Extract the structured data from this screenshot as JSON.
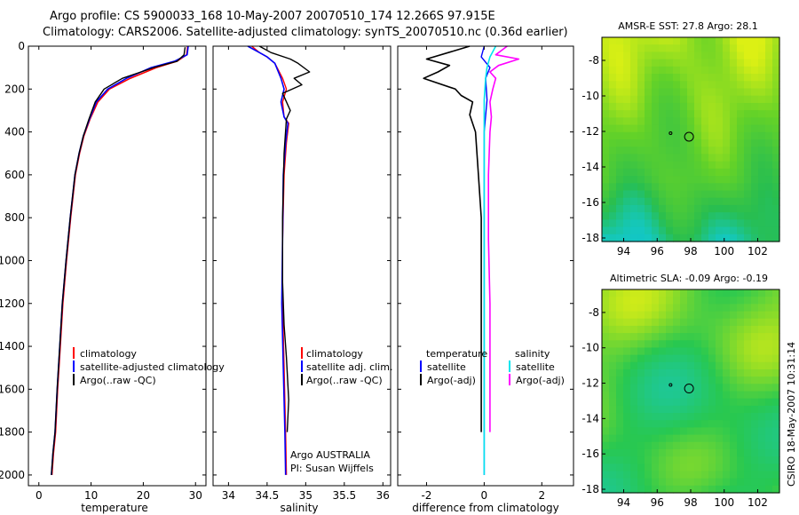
{
  "figure": {
    "title_line1": "Argo profile: CS 5900033_168 10-May-2007 20070510_174 12.266S 97.915E",
    "title_line2": "Climatology: CARS2006. Satellite-adjusted climatology: synTS_20070510.nc (0.36d earlier)",
    "side_stamp": "CSIRO 18-May-2007 10:31:14",
    "colors": {
      "climatology": "#ff0000",
      "satellite": "#0000ff",
      "argo": "#000000",
      "salinity_satellite": "#00e5ee",
      "salinity_argo": "#ff00ff"
    }
  },
  "chart_data": [
    {
      "id": "temperature",
      "type": "line",
      "xlabel": "temperature",
      "ylabel": "",
      "xlim": [
        -2,
        32
      ],
      "ylim": [
        2050,
        0
      ],
      "xticks": [
        0,
        10,
        20,
        30
      ],
      "yticks": [
        0,
        200,
        400,
        600,
        800,
        1000,
        1200,
        1400,
        1600,
        1800,
        2000
      ],
      "legend": [
        "climatology",
        "satellite-adjusted climatology",
        "Argo(..raw -QC)"
      ],
      "series": [
        {
          "name": "climatology",
          "color": "#ff0000",
          "width": 1.6,
          "x": [
            28.5,
            28.3,
            26.5,
            22.5,
            17.5,
            13.5,
            11.3,
            9.8,
            8.6,
            7.8,
            7.0,
            6.1,
            5.3,
            4.6,
            4.1,
            3.6,
            3.2,
            2.8,
            2.5
          ],
          "y": [
            0,
            40,
            70,
            100,
            150,
            200,
            260,
            340,
            420,
            500,
            600,
            800,
            1000,
            1200,
            1400,
            1600,
            1800,
            1900,
            2000
          ]
        },
        {
          "name": "satellite-adjusted climatology",
          "color": "#0000ff",
          "width": 1.6,
          "x": [
            28.6,
            28.4,
            26.0,
            21.5,
            16.8,
            13.2,
            11.0,
            9.7,
            8.5,
            7.7,
            6.9,
            6.0,
            5.2,
            4.5,
            4.0,
            3.5,
            3.1,
            2.7,
            2.4
          ],
          "y": [
            0,
            40,
            70,
            100,
            150,
            200,
            260,
            340,
            420,
            500,
            600,
            800,
            1000,
            1200,
            1400,
            1600,
            1800,
            1900,
            2000
          ]
        },
        {
          "name": "Argo(..raw -QC)",
          "color": "#000000",
          "width": 1.4,
          "x": [
            28.0,
            27.8,
            26.5,
            22.0,
            16.0,
            12.5,
            10.8,
            9.6,
            8.5,
            7.7,
            6.9,
            6.0,
            5.2,
            4.5,
            4.0,
            3.5,
            3.1,
            2.7,
            2.4
          ],
          "y": [
            5,
            40,
            70,
            100,
            150,
            200,
            260,
            340,
            420,
            500,
            600,
            800,
            1000,
            1200,
            1400,
            1600,
            1800,
            1900,
            2000
          ]
        }
      ]
    },
    {
      "id": "salinity",
      "type": "line",
      "xlabel": "salinity",
      "ylabel": "",
      "xlim": [
        33.8,
        36.1
      ],
      "ylim": [
        2050,
        0
      ],
      "xticks": [
        34,
        34.5,
        35,
        35.5,
        36
      ],
      "xticklabels": [
        "34",
        "34.5",
        "35",
        "35.5",
        "36"
      ],
      "legend": [
        "climatology",
        "satellite adj. clim.",
        "Argo(..raw -QC)"
      ],
      "annotations": [
        "Argo AUSTRALIA",
        "PI: Susan Wijffels"
      ],
      "series": [
        {
          "name": "climatology",
          "color": "#ff0000",
          "width": 1.4,
          "x": [
            34.3,
            34.4,
            34.5,
            34.6,
            34.7,
            34.75,
            34.7,
            34.72,
            34.78,
            34.75,
            34.72,
            34.7,
            34.7,
            34.72,
            34.74,
            34.75
          ],
          "y": [
            0,
            30,
            50,
            80,
            150,
            200,
            260,
            330,
            360,
            450,
            600,
            900,
            1200,
            1500,
            1800,
            2000
          ]
        },
        {
          "name": "satellite adj. clim.",
          "color": "#0000ff",
          "width": 1.6,
          "x": [
            34.25,
            34.4,
            34.5,
            34.6,
            34.68,
            34.72,
            34.68,
            34.72,
            34.77,
            34.74,
            34.71,
            34.7,
            34.69,
            34.71,
            34.73,
            34.74
          ],
          "y": [
            0,
            30,
            50,
            80,
            150,
            200,
            260,
            330,
            360,
            450,
            600,
            900,
            1200,
            1500,
            1800,
            2000
          ]
        },
        {
          "name": "Argo(..raw -QC)",
          "color": "#000000",
          "width": 1.4,
          "x": [
            34.4,
            34.55,
            34.8,
            34.9,
            35.05,
            34.85,
            34.95,
            34.7,
            34.8,
            34.75,
            34.72,
            34.7,
            34.7,
            34.72,
            34.75,
            34.78,
            34.76
          ],
          "y": [
            0,
            30,
            60,
            80,
            120,
            150,
            180,
            220,
            300,
            340,
            500,
            800,
            1100,
            1300,
            1450,
            1650,
            1800
          ]
        }
      ]
    },
    {
      "id": "difference",
      "type": "line",
      "xlabel": "difference from climatology",
      "ylabel": "",
      "xlim": [
        -3,
        3.1
      ],
      "ylim": [
        2050,
        0
      ],
      "xticks": [
        -2,
        0,
        2
      ],
      "xticklabels": [
        "-2",
        "0",
        "2"
      ],
      "legend_temperature_title": "temperature",
      "legend_salinity_title": "salinity",
      "legend": [
        "satellite",
        "Argo(-adj)",
        "satellite",
        "Argo(-adj)"
      ],
      "series": [
        {
          "name": "temperature satellite",
          "color": "#0000ff",
          "width": 1.4,
          "x": [
            0,
            -0.1,
            0.2,
            0.05,
            0.1,
            0.0,
            0.0,
            0.0,
            0.0,
            0.0
          ],
          "y": [
            0,
            50,
            100,
            150,
            250,
            400,
            800,
            1200,
            1600,
            2000
          ]
        },
        {
          "name": "temperature Argo(-adj)",
          "color": "#000000",
          "width": 1.6,
          "x": [
            -0.5,
            -2.0,
            -1.2,
            -1.6,
            -2.1,
            -1.0,
            -0.8,
            -0.4,
            -0.5,
            -0.3,
            -0.2,
            -0.1,
            -0.1,
            -0.1,
            -0.1,
            -0.1,
            -0.1
          ],
          "y": [
            0,
            60,
            90,
            120,
            150,
            200,
            230,
            260,
            320,
            400,
            600,
            800,
            1000,
            1200,
            1400,
            1600,
            1800
          ]
        },
        {
          "name": "salinity satellite",
          "color": "#00e5ee",
          "width": 1.6,
          "x": [
            0.4,
            0.2,
            0.1,
            0.05,
            0.0,
            0.0,
            0.0,
            0.0,
            0.0,
            0.0
          ],
          "y": [
            0,
            50,
            100,
            150,
            250,
            400,
            800,
            1200,
            1600,
            2000
          ]
        },
        {
          "name": "salinity Argo(-adj)",
          "color": "#ff00ff",
          "width": 1.6,
          "x": [
            0.8,
            0.4,
            1.2,
            0.5,
            0.2,
            0.4,
            0.3,
            0.2,
            0.25,
            0.2,
            0.15,
            0.15,
            0.2,
            0.2,
            0.2
          ],
          "y": [
            0,
            40,
            60,
            90,
            120,
            150,
            200,
            260,
            330,
            400,
            600,
            900,
            1200,
            1500,
            1800
          ]
        }
      ]
    },
    {
      "id": "sst_map",
      "type": "heatmap",
      "title": "AMSR-E SST: 27.8 Argo: 28.1",
      "xlim": [
        92.7,
        103.3
      ],
      "ylim": [
        -18.2,
        -6.7
      ],
      "xticks": [
        94,
        96,
        98,
        100,
        102
      ],
      "yticks": [
        -8,
        -10,
        -12,
        -14,
        -16,
        -18
      ],
      "marker_point": [
        97.9,
        -12.3
      ],
      "small_marker_point": [
        96.8,
        -12.1
      ]
    },
    {
      "id": "sla_map",
      "type": "heatmap",
      "title": "Altimetric SLA: -0.09 Argo: -0.19",
      "xlim": [
        92.7,
        103.3
      ],
      "ylim": [
        -18.2,
        -6.7
      ],
      "xticks": [
        94,
        96,
        98,
        100,
        102
      ],
      "yticks": [
        -8,
        -10,
        -12,
        -14,
        -16,
        -18
      ],
      "marker_point": [
        97.9,
        -12.3
      ],
      "small_marker_point": [
        96.8,
        -12.1
      ]
    }
  ]
}
